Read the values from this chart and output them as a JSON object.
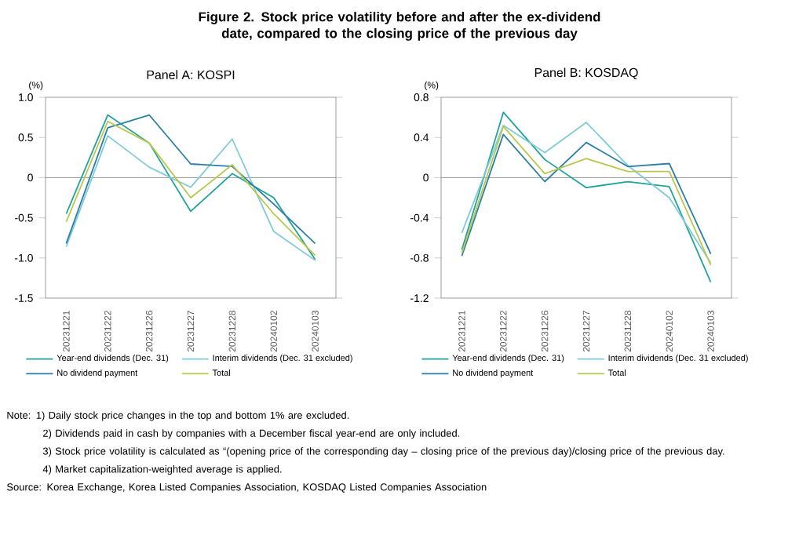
{
  "chart_data": [
    {
      "type": "line",
      "title": "Figure 2. Stock price volatility before and after the ex-dividend date, compared to the closing price of the previous day",
      "subtitle": "Panel A: KOSPI",
      "ylabel": "(%)",
      "categories": [
        "20231221",
        "20231222",
        "20231226",
        "20231227",
        "20231228",
        "20240102",
        "20240103"
      ],
      "series": [
        {
          "name": "Year-end dividends (Dec. 31)",
          "color": "#20a39a",
          "values": [
            -0.45,
            0.78,
            0.43,
            -0.42,
            0.05,
            -0.25,
            -1.02
          ]
        },
        {
          "name": "Interim dividends (Dec. 31 excluded)",
          "color": "#7fcbd9",
          "values": [
            -0.86,
            0.52,
            0.13,
            -0.12,
            0.48,
            -0.67,
            -1.03
          ]
        },
        {
          "name": "No dividend payment",
          "color": "#2b7fa6",
          "values": [
            -0.82,
            0.62,
            0.78,
            0.17,
            0.14,
            -0.33,
            -0.82
          ]
        },
        {
          "name": "Total",
          "color": "#b8c84e",
          "values": [
            -0.55,
            0.7,
            0.43,
            -0.25,
            0.16,
            -0.45,
            -0.97
          ]
        }
      ],
      "ylim": [
        -1.5,
        1.0
      ],
      "yticks": [
        {
          "value": 1.0,
          "label": "1.0"
        },
        0.5,
        0,
        -0.5,
        {
          "value": -1.0,
          "label": "-1.0"
        },
        -1.5
      ],
      "grid": false,
      "legend": "bottom",
      "marker": "none",
      "line_style": "solid",
      "ref_lines": [
        {
          "axis": "y",
          "value": 0
        }
      ],
      "annotations": [
        "Note: 1) Daily stock price changes in the top and bottom 1% are excluded.",
        "2) Dividends paid in cash by companies with a December fiscal year-end are only included.",
        "3) Stock price volatility is calculated as “(opening price of the corresponding day – closing price of the previous day)/closing price of the previous day.",
        "4) Market capitalization-weighted average is applied.",
        "Source: Korea Exchange, Korea Listed Companies Association, KOSDAQ Listed Companies Association"
      ]
    },
    {
      "type": "line",
      "subtitle": "Panel B: KOSDAQ",
      "ylabel": "(%)",
      "categories": [
        "20231221",
        "20231222",
        "20231226",
        "20231227",
        "20231228",
        "20240102",
        "20240103"
      ],
      "series": [
        {
          "name": "Year-end dividends (Dec. 31)",
          "color": "#20a39a",
          "values": [
            -0.72,
            0.65,
            0.18,
            -0.1,
            -0.04,
            -0.09,
            -1.04
          ]
        },
        {
          "name": "Interim dividends (Dec. 31 excluded)",
          "color": "#7fcbd9",
          "values": [
            -0.55,
            0.52,
            0.25,
            0.55,
            0.12,
            -0.2,
            -0.85
          ]
        },
        {
          "name": "No dividend payment",
          "color": "#2b7fa6",
          "values": [
            -0.78,
            0.43,
            -0.04,
            0.35,
            0.11,
            0.14,
            -0.76
          ]
        },
        {
          "name": "Total",
          "color": "#b8c84e",
          "values": [
            -0.75,
            0.51,
            0.04,
            0.19,
            0.06,
            0.06,
            -0.87
          ]
        }
      ],
      "ylim": [
        -1.2,
        0.8
      ],
      "yticks": [
        0.8,
        0.4,
        0,
        -0.4,
        -0.8,
        -1.2
      ],
      "ref_lines": [
        {
          "axis": "y",
          "value": 0
        }
      ],
      "grid": false,
      "legend": "bottom",
      "marker": "none",
      "line_style": "solid"
    }
  ]
}
